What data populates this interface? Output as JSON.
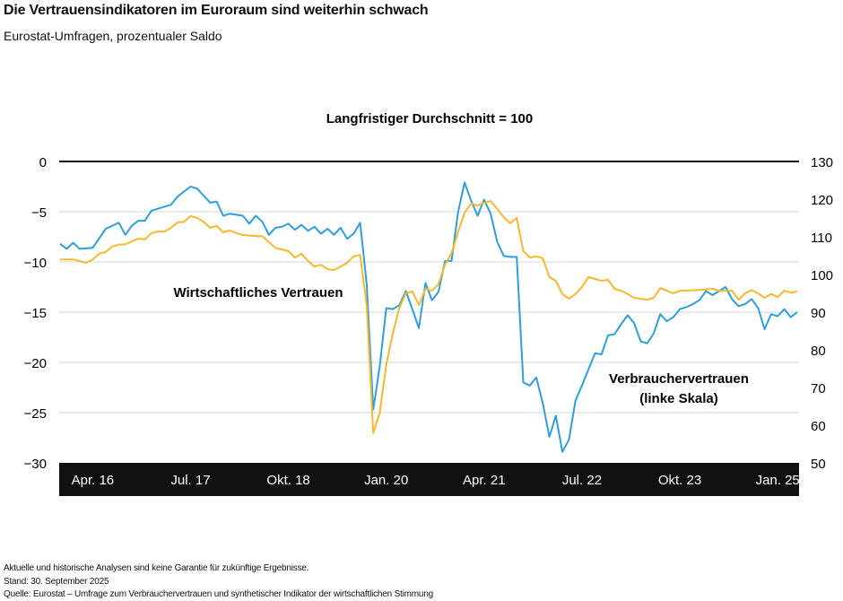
{
  "title": "Die Vertrauensindikatoren im Euroraum sind weiterhin schwach",
  "subtitle": "Eurostat-Umfragen, prozentualer Saldo",
  "footer": {
    "disclaimer": "Aktuelle und historische Analysen sind keine Garantie für zukünftige Ergebnisse.",
    "date": "Stand: 30. September 2025",
    "source": "Quelle: Eurostat – Umfrage zum Verbrauchervertrauen und synthetischer Indikator der wirtschaftlichen Stimmung"
  },
  "chart_data": {
    "type": "line",
    "annotation": "Langfristiger Durchschnitt = 100",
    "x_unit": "month index",
    "x_ticks": [
      {
        "x": 5,
        "label": "Apr. 16"
      },
      {
        "x": 20,
        "label": "Jul. 17"
      },
      {
        "x": 35,
        "label": "Okt. 18"
      },
      {
        "x": 50,
        "label": "Jan. 20"
      },
      {
        "x": 65,
        "label": "Apr. 21"
      },
      {
        "x": 80,
        "label": "Jul. 22"
      },
      {
        "x": 95,
        "label": "Okt. 23"
      },
      {
        "x": 110,
        "label": "Jan. 25"
      }
    ],
    "xlim": [
      0,
      113
    ],
    "y_left": {
      "ylim": [
        -30,
        0
      ],
      "ticks": [
        "0",
        "−5",
        "−10",
        "−15",
        "−20",
        "−25",
        "−30"
      ],
      "tick_values": [
        0,
        -5,
        -10,
        -15,
        -20,
        -25,
        -30
      ]
    },
    "y_right": {
      "ylim": [
        50,
        130
      ],
      "ticks": [
        "130",
        "120",
        "110",
        "100",
        "90",
        "80",
        "70",
        "60",
        "50"
      ],
      "tick_values": [
        130,
        120,
        110,
        100,
        90,
        80,
        70,
        60,
        50
      ]
    },
    "grid": true,
    "series": [
      {
        "name": "Verbrauchervertrauen",
        "label_line1": "Verbrauchervertrauen",
        "label_line2": "(linke Skala)",
        "axis": "left",
        "color": "#2e9fd8",
        "points": [
          [
            0,
            -8.2
          ],
          [
            1,
            -8.7
          ],
          [
            2,
            -8.1
          ],
          [
            3,
            -8.7
          ],
          [
            5,
            -8.6
          ],
          [
            7,
            -6.7
          ],
          [
            9,
            -6.1
          ],
          [
            10,
            -7.3
          ],
          [
            11,
            -6.4
          ],
          [
            12,
            -5.9
          ],
          [
            13,
            -5.9
          ],
          [
            14,
            -4.9
          ],
          [
            17,
            -4.3
          ],
          [
            18,
            -3.5
          ],
          [
            19,
            -3.0
          ],
          [
            20,
            -2.5
          ],
          [
            21,
            -2.7
          ],
          [
            23,
            -4.1
          ],
          [
            24,
            -4.0
          ],
          [
            25,
            -5.4
          ],
          [
            26,
            -5.2
          ],
          [
            28,
            -5.4
          ],
          [
            29,
            -6.2
          ],
          [
            30,
            -5.4
          ],
          [
            31,
            -6.0
          ],
          [
            32,
            -7.3
          ],
          [
            33,
            -6.6
          ],
          [
            34,
            -6.5
          ],
          [
            35,
            -6.2
          ],
          [
            36,
            -6.8
          ],
          [
            37,
            -6.3
          ],
          [
            38,
            -6.9
          ],
          [
            39,
            -6.5
          ],
          [
            40,
            -7.2
          ],
          [
            41,
            -6.7
          ],
          [
            42,
            -7.3
          ],
          [
            43,
            -6.6
          ],
          [
            44,
            -7.7
          ],
          [
            45,
            -7.2
          ],
          [
            46,
            -6.1
          ],
          [
            47,
            -12.2
          ],
          [
            48,
            -24.7
          ],
          [
            49,
            -20.4
          ],
          [
            50,
            -14.6
          ],
          [
            51,
            -14.7
          ],
          [
            52,
            -14.3
          ],
          [
            53,
            -12.9
          ],
          [
            54,
            -14.7
          ],
          [
            55,
            -16.6
          ],
          [
            56,
            -12.1
          ],
          [
            57,
            -13.8
          ],
          [
            58,
            -13.0
          ],
          [
            59,
            -9.9
          ],
          [
            60,
            -9.9
          ],
          [
            61,
            -5.1
          ],
          [
            62,
            -2.1
          ],
          [
            63,
            -3.9
          ],
          [
            64,
            -5.4
          ],
          [
            65,
            -3.8
          ],
          [
            66,
            -5.2
          ],
          [
            67,
            -8.0
          ],
          [
            68,
            -9.4
          ],
          [
            69,
            -9.5
          ],
          [
            70,
            -9.5
          ],
          [
            71,
            -22.0
          ],
          [
            72,
            -22.3
          ],
          [
            73,
            -21.5
          ],
          [
            74,
            -24.1
          ],
          [
            75,
            -27.4
          ],
          [
            76,
            -25.3
          ],
          [
            77,
            -28.9
          ],
          [
            78,
            -27.7
          ],
          [
            79,
            -23.8
          ],
          [
            80,
            -22.3
          ],
          [
            81,
            -20.7
          ],
          [
            82,
            -19.1
          ],
          [
            83,
            -19.2
          ],
          [
            84,
            -17.3
          ],
          [
            85,
            -17.2
          ],
          [
            86,
            -16.2
          ],
          [
            87,
            -15.3
          ],
          [
            88,
            -16.1
          ],
          [
            89,
            -17.9
          ],
          [
            90,
            -18.1
          ],
          [
            91,
            -17.1
          ],
          [
            92,
            -15.2
          ],
          [
            93,
            -15.9
          ],
          [
            94,
            -15.5
          ],
          [
            95,
            -14.7
          ],
          [
            96,
            -14.5
          ],
          [
            97,
            -14.2
          ],
          [
            98,
            -13.8
          ],
          [
            99,
            -12.9
          ],
          [
            100,
            -13.3
          ],
          [
            101,
            -12.9
          ],
          [
            102,
            -12.5
          ],
          [
            103,
            -13.7
          ],
          [
            104,
            -14.4
          ],
          [
            105,
            -14.2
          ],
          [
            106,
            -13.7
          ],
          [
            107,
            -14.6
          ],
          [
            108,
            -16.7
          ],
          [
            109,
            -15.2
          ],
          [
            110,
            -15.4
          ],
          [
            111,
            -14.7
          ],
          [
            112,
            -15.5
          ],
          [
            113,
            -15.0
          ]
        ]
      },
      {
        "name": "Wirtschaftliches Vertrauen",
        "label_line1": "Wirtschaftliches Vertrauen",
        "axis": "right",
        "color": "#f5b82e",
        "points": [
          [
            0,
            104.0
          ],
          [
            2,
            104.0
          ],
          [
            4,
            103.1
          ],
          [
            5,
            104.0
          ],
          [
            6,
            105.5
          ],
          [
            7,
            106.0
          ],
          [
            8,
            107.4
          ],
          [
            9,
            107.9
          ],
          [
            10,
            108.0
          ],
          [
            11,
            108.8
          ],
          [
            12,
            109.5
          ],
          [
            13,
            109.3
          ],
          [
            14,
            111.0
          ],
          [
            15,
            111.4
          ],
          [
            16,
            111.4
          ],
          [
            17,
            112.4
          ],
          [
            18,
            113.8
          ],
          [
            19,
            114.0
          ],
          [
            20,
            115.5
          ],
          [
            21,
            115.0
          ],
          [
            22,
            114.0
          ],
          [
            23,
            112.4
          ],
          [
            24,
            112.9
          ],
          [
            25,
            111.2
          ],
          [
            26,
            111.7
          ],
          [
            27,
            111.0
          ],
          [
            28,
            110.5
          ],
          [
            30,
            110.2
          ],
          [
            31,
            110.2
          ],
          [
            32,
            108.6
          ],
          [
            33,
            107.1
          ],
          [
            35,
            106.2
          ],
          [
            36,
            104.5
          ],
          [
            37,
            105.5
          ],
          [
            38,
            103.6
          ],
          [
            39,
            102.1
          ],
          [
            40,
            102.6
          ],
          [
            41,
            101.4
          ],
          [
            42,
            101.2
          ],
          [
            43,
            102.1
          ],
          [
            44,
            103.1
          ],
          [
            45,
            104.8
          ],
          [
            46,
            105.2
          ],
          [
            47,
            91.9
          ],
          [
            48,
            57.9
          ],
          [
            49,
            63.3
          ],
          [
            50,
            76.0
          ],
          [
            51,
            84.3
          ],
          [
            52,
            91.2
          ],
          [
            53,
            95.0
          ],
          [
            54,
            95.5
          ],
          [
            55,
            91.9
          ],
          [
            56,
            96.2
          ],
          [
            57,
            95.7
          ],
          [
            58,
            97.4
          ],
          [
            59,
            102.6
          ],
          [
            60,
            105.7
          ],
          [
            61,
            111.2
          ],
          [
            62,
            116.4
          ],
          [
            63,
            118.8
          ],
          [
            64,
            118.3
          ],
          [
            65,
            119.0
          ],
          [
            66,
            119.5
          ],
          [
            67,
            117.4
          ],
          [
            68,
            115.2
          ],
          [
            69,
            113.6
          ],
          [
            70,
            115.0
          ],
          [
            71,
            106.2
          ],
          [
            72,
            104.5
          ],
          [
            73,
            104.8
          ],
          [
            74,
            104.3
          ],
          [
            75,
            99.3
          ],
          [
            76,
            98.3
          ],
          [
            77,
            94.8
          ],
          [
            78,
            93.6
          ],
          [
            79,
            94.8
          ],
          [
            80,
            96.7
          ],
          [
            81,
            99.3
          ],
          [
            82,
            98.8
          ],
          [
            83,
            98.3
          ],
          [
            84,
            98.6
          ],
          [
            85,
            96.2
          ],
          [
            86,
            95.7
          ],
          [
            87,
            94.8
          ],
          [
            88,
            93.8
          ],
          [
            90,
            93.3
          ],
          [
            91,
            93.8
          ],
          [
            92,
            96.4
          ],
          [
            93,
            95.7
          ],
          [
            94,
            95.0
          ],
          [
            95,
            95.7
          ],
          [
            98,
            95.9
          ],
          [
            100,
            96.2
          ],
          [
            101,
            95.7
          ],
          [
            103,
            95.7
          ],
          [
            104,
            93.3
          ],
          [
            105,
            95.0
          ],
          [
            106,
            95.9
          ],
          [
            107,
            95.0
          ],
          [
            108,
            93.8
          ],
          [
            109,
            94.8
          ],
          [
            110,
            94.0
          ],
          [
            111,
            95.7
          ],
          [
            112,
            95.2
          ],
          [
            113,
            95.5
          ]
        ]
      }
    ]
  }
}
